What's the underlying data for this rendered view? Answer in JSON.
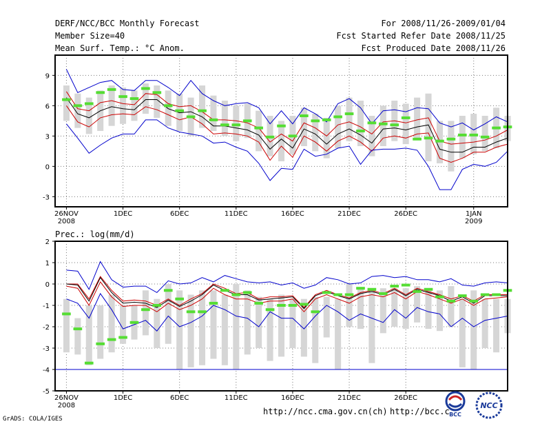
{
  "header": {
    "title": "DERF/NCC/BCC Monthly Forecast",
    "member_size": "Member Size=40",
    "variable": "Mean Surf. Temp.: °C Anom.",
    "period": "For 2008/11/26-2009/01/04",
    "start_date": "Fcst Started Refer Date 2008/11/25",
    "produced_date": "Fcst Produced Date 2008/11/26"
  },
  "footer": {
    "grads": "GrADS: COLA/IGES",
    "url1": "http://ncc.cma.gov.cn(ch)",
    "url2": "http://bcc.c",
    "logo1": "BCC",
    "logo2": "NCC"
  },
  "colors": {
    "ensemble_bar": "#d6d6d6",
    "mean_marker": "#55dd33",
    "median_line": "#000000",
    "quartile_line": "#cc0000",
    "extreme_line": "#0000cc"
  },
  "chart_data": [
    {
      "type": "line",
      "title": "Mean Surf. Temp.: °C Anom.",
      "xlabel": "",
      "ylabel": "",
      "ylim": [
        -4,
        11
      ],
      "yticks": [
        -3,
        0,
        3,
        6,
        9
      ],
      "xlim": [
        0,
        40
      ],
      "xticks": [
        {
          "x": 1,
          "label": "26NOV",
          "sub": "2008"
        },
        {
          "x": 6,
          "label": "1DEC",
          "sub": ""
        },
        {
          "x": 11,
          "label": "6DEC",
          "sub": ""
        },
        {
          "x": 16,
          "label": "11DEC",
          "sub": ""
        },
        {
          "x": 21,
          "label": "16DEC",
          "sub": ""
        },
        {
          "x": 26,
          "label": "21DEC",
          "sub": ""
        },
        {
          "x": 31,
          "label": "26DEC",
          "sub": ""
        },
        {
          "x": 37,
          "label": "1JAN",
          "sub": "2009"
        }
      ],
      "grid": true,
      "days": [
        1,
        2,
        3,
        4,
        5,
        6,
        7,
        8,
        9,
        10,
        11,
        12,
        13,
        14,
        15,
        16,
        17,
        18,
        19,
        20,
        21,
        22,
        23,
        24,
        25,
        26,
        27,
        28,
        29,
        30,
        31,
        32,
        33,
        34,
        35,
        36,
        37,
        38,
        39,
        40
      ],
      "bar_low": [
        4.5,
        3.8,
        3.2,
        3.5,
        4.0,
        4.2,
        4.5,
        5.2,
        4.8,
        4.0,
        3.5,
        3.0,
        3.8,
        3.5,
        3.0,
        2.5,
        2.8,
        1.5,
        1.0,
        0.5,
        1.2,
        2.0,
        1.5,
        0.8,
        1.8,
        2.5,
        2.0,
        1.0,
        2.0,
        2.5,
        2.2,
        2.8,
        0.5,
        0.3,
        -0.5,
        0.8,
        1.2,
        1.5,
        1.8,
        2.5
      ],
      "bar_high": [
        8.0,
        7.2,
        6.8,
        7.5,
        8.0,
        7.8,
        7.5,
        8.2,
        8.0,
        7.5,
        7.2,
        6.8,
        8.0,
        7.0,
        6.5,
        6.0,
        6.2,
        5.5,
        5.0,
        4.5,
        5.0,
        5.8,
        5.2,
        4.8,
        6.0,
        6.8,
        6.5,
        5.0,
        6.0,
        6.5,
        6.2,
        6.8,
        7.2,
        4.5,
        4.5,
        5.0,
        5.2,
        5.0,
        5.8,
        5.0
      ],
      "series": [
        {
          "name": "max",
          "values": [
            9.6,
            7.3,
            7.8,
            8.3,
            8.5,
            7.6,
            7.5,
            8.5,
            8.5,
            7.8,
            7.0,
            8.5,
            7.2,
            6.5,
            6.0,
            6.2,
            6.3,
            5.8,
            4.2,
            5.5,
            4.2,
            5.8,
            5.2,
            4.4,
            6.2,
            6.7,
            5.8,
            4.2,
            5.5,
            5.6,
            5.4,
            5.8,
            5.7,
            4.3,
            3.9,
            4.3,
            3.6,
            4.2,
            4.9,
            4.4
          ]
        },
        {
          "name": "q3",
          "values": [
            7.4,
            5.7,
            5.5,
            6.3,
            6.5,
            6.2,
            6.1,
            7.2,
            7.1,
            6.2,
            5.9,
            6.0,
            5.4,
            4.6,
            4.6,
            4.5,
            4.3,
            3.8,
            2.4,
            3.2,
            2.5,
            4.3,
            3.8,
            3.0,
            4.1,
            4.4,
            3.9,
            3.2,
            4.4,
            4.5,
            4.3,
            4.6,
            4.8,
            2.5,
            2.2,
            2.3,
            2.4,
            2.6,
            3.0,
            3.6
          ]
        },
        {
          "name": "median",
          "values": [
            6.8,
            5.2,
            4.8,
            5.5,
            5.9,
            5.7,
            5.6,
            6.6,
            6.6,
            5.7,
            5.3,
            5.4,
            4.9,
            4.0,
            4.0,
            3.8,
            3.6,
            3.1,
            1.7,
            2.7,
            1.8,
            3.7,
            3.2,
            2.2,
            3.2,
            3.7,
            3.1,
            2.3,
            3.7,
            3.8,
            3.6,
            3.9,
            4.1,
            1.7,
            1.4,
            1.4,
            1.9,
            1.9,
            2.4,
            2.8
          ]
        },
        {
          "name": "q1",
          "values": [
            6.0,
            4.4,
            3.9,
            4.8,
            5.1,
            5.2,
            5.1,
            5.9,
            5.6,
            5.1,
            4.6,
            4.9,
            4.2,
            3.2,
            3.3,
            3.2,
            3.0,
            2.4,
            0.6,
            2.0,
            0.9,
            3.0,
            2.4,
            1.5,
            2.5,
            3.0,
            2.4,
            1.5,
            2.8,
            3.0,
            2.8,
            3.2,
            3.3,
            0.8,
            0.4,
            0.8,
            1.4,
            1.4,
            1.9,
            2.2
          ]
        },
        {
          "name": "min",
          "values": [
            4.2,
            2.8,
            1.3,
            2.1,
            2.8,
            3.2,
            3.2,
            4.6,
            4.6,
            3.8,
            3.4,
            3.2,
            3.0,
            2.3,
            2.4,
            1.9,
            1.5,
            0.3,
            -1.4,
            -0.2,
            -0.3,
            1.7,
            1.0,
            1.2,
            1.8,
            2.0,
            0.2,
            1.6,
            1.7,
            1.7,
            1.8,
            1.6,
            0.0,
            -2.3,
            -2.3,
            -0.3,
            0.2,
            0.0,
            0.4,
            1.5
          ]
        },
        {
          "name": "ensemble_mean",
          "values": [
            6.6,
            6.0,
            6.2,
            7.3,
            7.6,
            6.9,
            6.7,
            7.7,
            7.3,
            6.0,
            5.5,
            4.9,
            5.5,
            4.6,
            4.1,
            4.1,
            4.5,
            3.8,
            2.9,
            4.0,
            3.0,
            5.0,
            4.5,
            4.6,
            4.9,
            5.2,
            3.5,
            4.3,
            4.2,
            4.1,
            4.8,
            2.7,
            2.8,
            2.5,
            2.7,
            3.1,
            3.1,
            2.9,
            3.8,
            3.9
          ]
        }
      ]
    },
    {
      "type": "line",
      "title": "Prec.: log(mm/d)",
      "xlabel": "",
      "ylabel": "",
      "ylim": [
        -5,
        2
      ],
      "yticks": [
        -5,
        -4,
        -3,
        -2,
        -1,
        0,
        1,
        2
      ],
      "xlim": [
        0,
        40
      ],
      "xticks": [
        {
          "x": 1,
          "label": "26NOV",
          "sub": "2008"
        },
        {
          "x": 6,
          "label": "1DEC",
          "sub": ""
        },
        {
          "x": 11,
          "label": "6DEC",
          "sub": ""
        },
        {
          "x": 16,
          "label": "11DEC",
          "sub": ""
        },
        {
          "x": 21,
          "label": "16DEC",
          "sub": ""
        },
        {
          "x": 26,
          "label": "21DEC",
          "sub": ""
        },
        {
          "x": 31,
          "label": "26DEC",
          "sub": ""
        }
      ],
      "grid": true,
      "baseline": -4,
      "days": [
        1,
        2,
        3,
        4,
        5,
        6,
        7,
        8,
        9,
        10,
        11,
        12,
        13,
        14,
        15,
        16,
        17,
        18,
        19,
        20,
        21,
        22,
        23,
        24,
        25,
        26,
        27,
        28,
        29,
        30,
        31,
        32,
        33,
        34,
        35,
        36,
        37,
        38,
        39,
        40
      ],
      "bar_low": [
        -3.2,
        -3.3,
        -3.8,
        -3.5,
        -3.2,
        -2.8,
        -2.6,
        -2.4,
        -3.0,
        -2.8,
        -4.0,
        -3.9,
        -3.8,
        -3.5,
        -3.8,
        -4.0,
        -3.3,
        -3.0,
        -3.6,
        -3.4,
        -3.0,
        -3.4,
        -3.7,
        -2.5,
        -4.0,
        -2.0,
        -2.1,
        -3.7,
        -2.3,
        -2.0,
        -2.1,
        -1.8,
        -2.1,
        -2.2,
        -2.0,
        -3.9,
        -4.0,
        -3.0,
        -3.2,
        -2.3
      ],
      "bar_high": [
        -0.7,
        -1.6,
        -1.0,
        -1.0,
        -0.5,
        -1.0,
        -1.0,
        -0.3,
        -0.7,
        0.0,
        -0.3,
        -0.5,
        -0.3,
        -0.3,
        -0.5,
        0.0,
        -0.3,
        -0.6,
        -0.7,
        -0.5,
        -0.7,
        -0.7,
        -0.6,
        -0.6,
        -0.7,
        0.0,
        -0.2,
        -0.3,
        -0.2,
        -0.2,
        -0.2,
        -0.1,
        -0.2,
        -0.3,
        -0.1,
        -0.7,
        -0.3,
        -0.7,
        -0.7,
        -0.7
      ],
      "series": [
        {
          "name": "max",
          "values": [
            0.65,
            0.6,
            -0.25,
            1.05,
            0.2,
            -0.15,
            -0.1,
            -0.1,
            -0.4,
            0.15,
            0.0,
            0.05,
            0.3,
            0.1,
            0.4,
            0.25,
            0.1,
            0.05,
            0.1,
            -0.05,
            0.05,
            -0.2,
            -0.05,
            0.3,
            0.2,
            0.0,
            0.05,
            0.35,
            0.4,
            0.3,
            0.35,
            0.2,
            0.2,
            0.1,
            0.25,
            -0.05,
            -0.1,
            0.05,
            0.1,
            0.05
          ]
        },
        {
          "name": "q3",
          "values": [
            0.0,
            0.0,
            -0.7,
            0.35,
            -0.3,
            -0.8,
            -0.75,
            -0.8,
            -1.0,
            -0.7,
            -1.0,
            -0.7,
            -0.45,
            0.0,
            -0.2,
            -0.45,
            -0.4,
            -0.7,
            -0.6,
            -0.6,
            -0.55,
            -1.1,
            -0.5,
            -0.3,
            -0.5,
            -0.65,
            -0.4,
            -0.3,
            -0.45,
            -0.2,
            -0.5,
            -0.2,
            -0.35,
            -0.5,
            -0.7,
            -0.55,
            -0.8,
            -0.5,
            -0.5,
            -0.5
          ]
        },
        {
          "name": "median",
          "values": [
            0.0,
            -0.05,
            -0.8,
            0.3,
            -0.4,
            -0.9,
            -0.85,
            -0.9,
            -1.1,
            -0.75,
            -1.05,
            -0.8,
            -0.5,
            -0.05,
            -0.3,
            -0.5,
            -0.5,
            -0.75,
            -0.7,
            -0.65,
            -0.6,
            -1.15,
            -0.55,
            -0.35,
            -0.55,
            -0.7,
            -0.45,
            -0.35,
            -0.5,
            -0.25,
            -0.55,
            -0.25,
            -0.4,
            -0.55,
            -0.8,
            -0.6,
            -0.9,
            -0.55,
            -0.55,
            -0.55
          ]
        },
        {
          "name": "q1",
          "values": [
            -0.1,
            -0.2,
            -1.0,
            0.1,
            -0.6,
            -1.05,
            -1.0,
            -1.0,
            -1.3,
            -0.9,
            -1.2,
            -1.0,
            -0.7,
            -0.2,
            -0.5,
            -0.7,
            -0.7,
            -0.9,
            -0.8,
            -0.8,
            -0.7,
            -1.3,
            -0.7,
            -0.5,
            -0.7,
            -0.9,
            -0.6,
            -0.5,
            -0.6,
            -0.4,
            -0.7,
            -0.35,
            -0.5,
            -0.7,
            -0.9,
            -0.7,
            -1.0,
            -0.7,
            -0.65,
            -0.6
          ]
        },
        {
          "name": "min",
          "values": [
            -0.7,
            -0.9,
            -1.6,
            -0.45,
            -1.2,
            -2.1,
            -1.9,
            -1.7,
            -2.2,
            -1.5,
            -2.0,
            -1.8,
            -1.5,
            -1.0,
            -1.2,
            -1.5,
            -1.6,
            -2.0,
            -1.3,
            -1.6,
            -1.6,
            -2.1,
            -1.5,
            -1.0,
            -1.3,
            -1.7,
            -1.4,
            -1.6,
            -1.8,
            -1.2,
            -1.6,
            -1.1,
            -1.3,
            -1.4,
            -2.0,
            -1.6,
            -2.0,
            -1.7,
            -1.6,
            -1.5
          ]
        },
        {
          "name": "ensemble_mean",
          "values": [
            -1.4,
            -2.1,
            -3.7,
            -2.8,
            -2.6,
            -2.5,
            -1.8,
            -1.2,
            -1.0,
            -0.3,
            -0.7,
            -1.3,
            -1.3,
            -0.9,
            -0.3,
            -0.5,
            -0.4,
            -0.9,
            -1.2,
            -1.0,
            -1.0,
            -0.95,
            -1.3,
            -0.4,
            -0.5,
            -0.5,
            -0.2,
            -0.25,
            -0.45,
            -0.1,
            -0.05,
            -0.35,
            -0.25,
            -0.6,
            -0.8,
            -0.55,
            -0.8,
            -0.5,
            -0.5,
            -0.3
          ]
        }
      ]
    }
  ]
}
